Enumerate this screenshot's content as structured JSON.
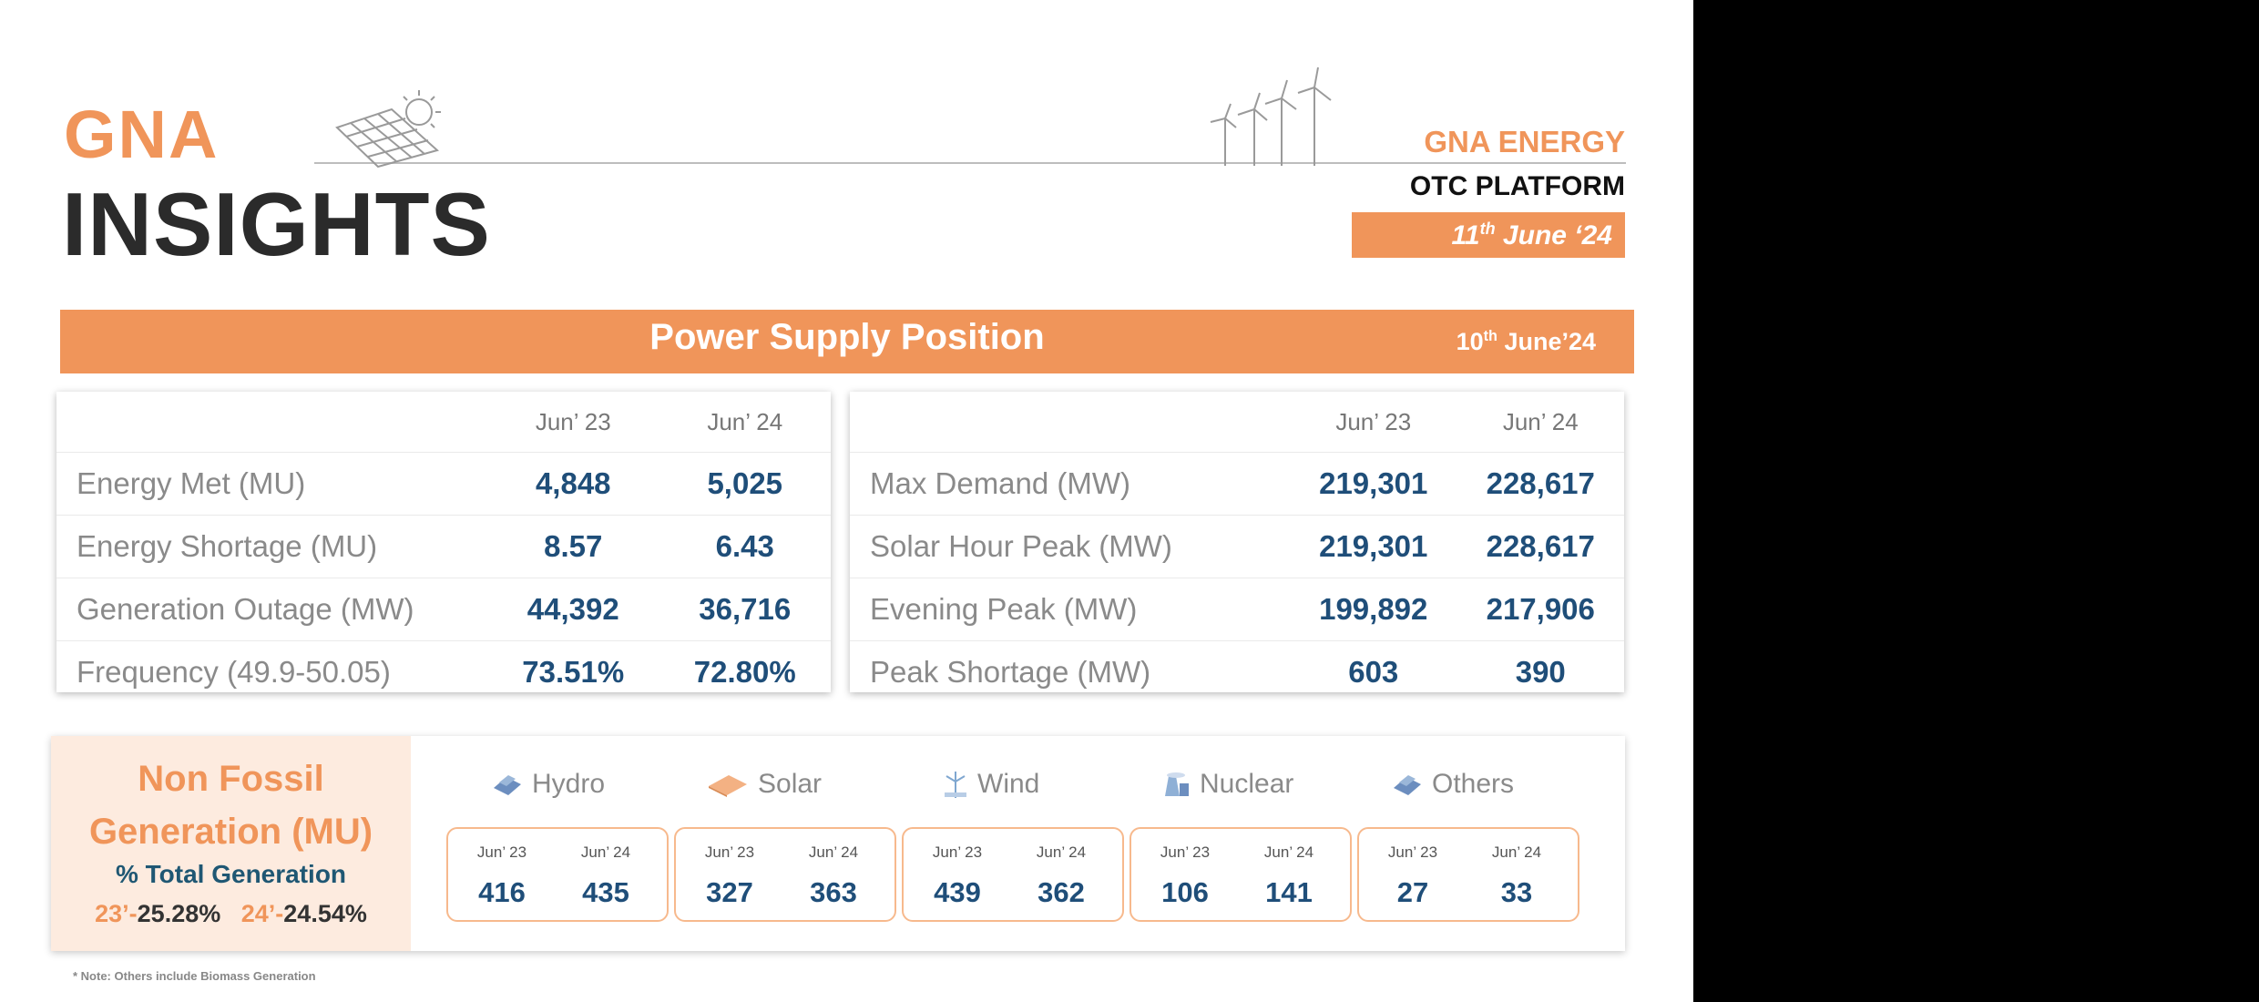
{
  "header": {
    "logo_top": "GNA",
    "logo_bottom": "INSIGHTS",
    "brand_name": "GNA ENERGY",
    "brand_sub": "OTC PLATFORM",
    "report_date_day": "11",
    "report_date_suffix": "th",
    "report_date_rest": " June ‘24"
  },
  "banner": {
    "title": "Power Supply Position",
    "date_day": "10",
    "date_suffix": "th",
    "date_rest": " June’24"
  },
  "supply_left": {
    "col1": "Jun’ 23",
    "col2": "Jun’ 24",
    "rows": [
      {
        "label": "Energy Met (MU)",
        "v23": "4,848",
        "v24": "5,025"
      },
      {
        "label": "Energy Shortage (MU)",
        "v23": "8.57",
        "v24": "6.43"
      },
      {
        "label": "Generation Outage (MW)",
        "v23": "44,392",
        "v24": "36,716"
      },
      {
        "label": "Frequency (49.9-50.05)",
        "v23": "73.51%",
        "v24": "72.80%"
      }
    ]
  },
  "supply_right": {
    "col1": "Jun’ 23",
    "col2": "Jun’ 24",
    "rows": [
      {
        "label": "Max Demand (MW)",
        "v23": "219,301",
        "v24": "228,617"
      },
      {
        "label": "Solar Hour Peak (MW)",
        "v23": "219,301",
        "v24": "228,617"
      },
      {
        "label": "Evening Peak (MW)",
        "v23": "199,892",
        "v24": "217,906"
      },
      {
        "label": "Peak Shortage (MW)",
        "v23": "603",
        "v24": "390"
      }
    ]
  },
  "non_fossil": {
    "title_line1": "Non Fossil",
    "title_line2": "Generation (MU)",
    "subtitle": "% Total Generation",
    "pct23_label": "23’-",
    "pct23_value": "25.28%",
    "pct24_label": "24’-",
    "pct24_value": "24.54%",
    "sources": [
      {
        "name": "Hydro",
        "icon": "hydro-icon",
        "y1": "Jun’ 23",
        "v1": "416",
        "y2": "Jun’ 24",
        "v2": "435"
      },
      {
        "name": "Solar",
        "icon": "solar-icon",
        "y1": "Jun’ 23",
        "v1": "327",
        "y2": "Jun’ 24",
        "v2": "363"
      },
      {
        "name": "Wind",
        "icon": "wind-icon",
        "y1": "Jun’ 23",
        "v1": "439",
        "y2": "Jun’ 24",
        "v2": "362"
      },
      {
        "name": "Nuclear",
        "icon": "nuclear-icon",
        "y1": "Jun’ 23",
        "v1": "106",
        "y2": "Jun’ 24",
        "v2": "141"
      },
      {
        "name": "Others",
        "icon": "others-icon",
        "y1": "Jun’ 23",
        "v1": "27",
        "y2": "Jun’ 24",
        "v2": "33"
      }
    ]
  },
  "note": "* Note: Others include Biomass Generation",
  "colors": {
    "accent": "#f0955a",
    "value_blue": "#1f4e79",
    "label_grey": "#8a8a8a",
    "panel_tint": "#fdebdf"
  }
}
